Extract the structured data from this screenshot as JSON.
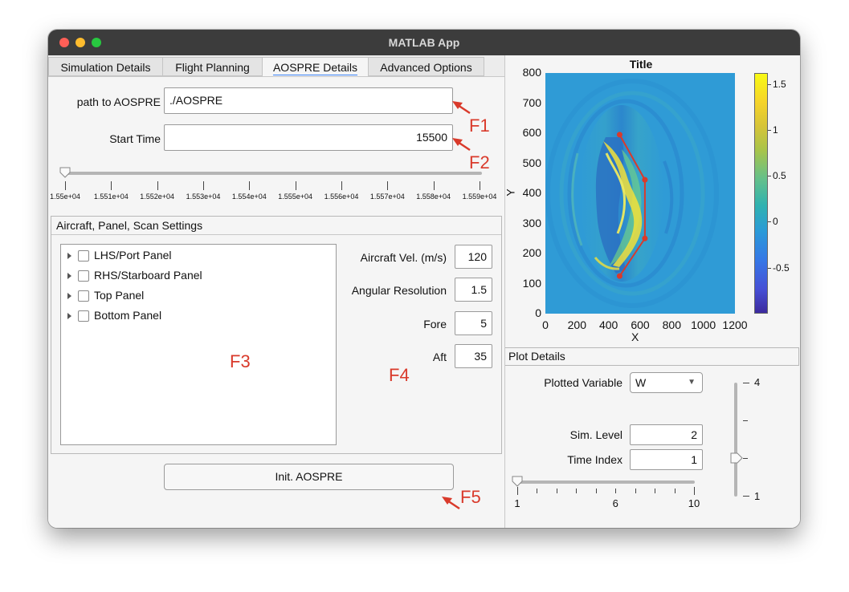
{
  "window": {
    "title": "MATLAB App"
  },
  "tabs": [
    {
      "label": "Simulation Details"
    },
    {
      "label": "Flight Planning"
    },
    {
      "label": "AOSPRE Details"
    },
    {
      "label": "Advanced Options"
    }
  ],
  "aospre": {
    "path_label": "path to AOSPRE",
    "path_value": "./AOSPRE",
    "start_label": "Start Time",
    "start_value": "15500",
    "slider_ticks": [
      "1.55e+04",
      "1.551e+04",
      "1.552e+04",
      "1.553e+04",
      "1.554e+04",
      "1.555e+04",
      "1.556e+04",
      "1.557e+04",
      "1.558e+04",
      "1.559e+04"
    ],
    "slider_position": 0.0,
    "init_button": "Init. AOSPRE"
  },
  "settings_panel": {
    "title": "Aircraft, Panel, Scan Settings",
    "tree_items": [
      {
        "label": "LHS/Port Panel",
        "checked": false
      },
      {
        "label": "RHS/Starboard Panel",
        "checked": false
      },
      {
        "label": "Top Panel",
        "checked": false
      },
      {
        "label": "Bottom Panel",
        "checked": false
      }
    ],
    "fields": [
      {
        "label": "Aircraft Vel. (m/s)",
        "value": "120"
      },
      {
        "label": "Angular Resolution",
        "value": "1.5"
      },
      {
        "label": "Fore",
        "value": "5"
      },
      {
        "label": "Aft",
        "value": "35"
      }
    ]
  },
  "annotations": {
    "f1": "F1",
    "f2": "F2",
    "f3": "F3",
    "f4": "F4",
    "f5": "F5",
    "color": "#d93a2b"
  },
  "plot": {
    "title": "Title",
    "xlabel": "X",
    "ylabel": "Y",
    "x_ticks": [
      "0",
      "200",
      "400",
      "600",
      "800",
      "1000",
      "1200"
    ],
    "y_ticks": [
      "800",
      "700",
      "600",
      "500",
      "400",
      "300",
      "200",
      "100",
      "0"
    ],
    "colorbar_ticks": [
      "1.5",
      "1",
      "0.5",
      "0",
      "-0.5"
    ],
    "colormap": "parula",
    "background_color": "#2f9bd6",
    "flight_track": {
      "color": "#d93a2b",
      "x": [
        470,
        630,
        630,
        470
      ],
      "y": [
        595,
        445,
        250,
        125
      ]
    }
  },
  "plot_details": {
    "title": "Plot Details",
    "variable_label": "Plotted Variable",
    "variable_value": "W",
    "level_label": "Sim. Level",
    "level_value": "2",
    "time_label": "Time Index",
    "time_value": "1",
    "h_slider_ticks": [
      "1",
      "6",
      "10"
    ],
    "h_slider_value": 1,
    "v_slider_ticks": [
      "4",
      "1"
    ],
    "v_slider_value": 2
  }
}
